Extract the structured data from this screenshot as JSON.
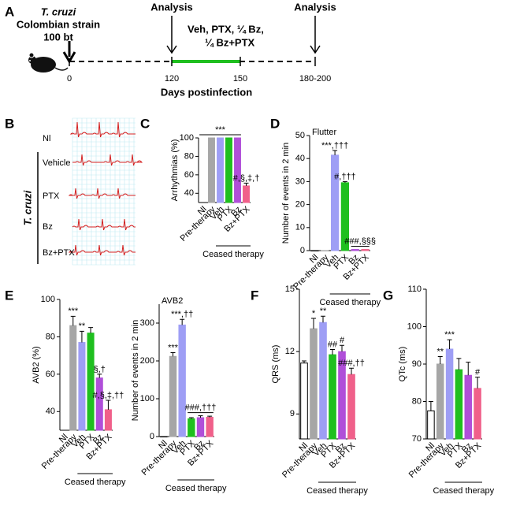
{
  "timeline": {
    "panel": "A",
    "infection": [
      "T. cruzi",
      "Colombian strain",
      "100 bt"
    ],
    "analysis": [
      "Analysis",
      "Analysis"
    ],
    "treatment": [
      "Veh, PTX, ¼ Bz,",
      "¼ Bz+PTX"
    ],
    "ticks": [
      "0",
      "120",
      "150",
      "180-200"
    ],
    "xlabel": "Days postinfection"
  },
  "ecg": {
    "panel": "B",
    "group": "T. cruzi",
    "rows": [
      "Nl",
      "Vehicle",
      "PTX",
      "Bz",
      "Bz+PTX"
    ]
  },
  "chart_data": [
    {
      "type": "bar",
      "panel": "C",
      "ylabel": "Arrhythmias (%)",
      "categories": [
        "Nl",
        "Pre-therapy",
        "Veh",
        "PTX",
        "Bz",
        "Bz+PTX"
      ],
      "values": [
        null,
        100,
        100,
        100,
        100,
        48
      ],
      "errors": [
        null,
        null,
        null,
        null,
        null,
        3
      ],
      "colors": [
        "#ffffff",
        "#a6a6a6",
        "#9e9ef5",
        "#1fbf1f",
        "#b04fd9",
        "#f0608a"
      ],
      "ylim": [
        30,
        100
      ],
      "yticks": [
        40,
        60,
        80,
        100
      ],
      "annotations": [
        null,
        null,
        null,
        null,
        null,
        "#,§,‡,†"
      ],
      "bracket": {
        "label": "***",
        "categories": [
          "Nl",
          "Bz"
        ]
      },
      "group": {
        "label": "Ceased therapy",
        "categories": [
          "Veh",
          "Bz+PTX"
        ]
      }
    },
    {
      "type": "bar",
      "panel": "D",
      "title": "Flutter",
      "ylabel": "Number of events in 2 min",
      "categories": [
        "Nl",
        "Pre-therapy",
        "Veh",
        "PTX",
        "Bz",
        "Bz+PTX"
      ],
      "values": [
        0,
        0,
        41.5,
        29.5,
        0.5,
        0.5
      ],
      "errors": [
        null,
        null,
        2,
        0.5,
        null,
        null
      ],
      "colors": [
        "#ffffff",
        "#a6a6a6",
        "#9e9ef5",
        "#1fbf1f",
        "#b04fd9",
        "#f0608a"
      ],
      "ylim": [
        0,
        50
      ],
      "yticks": [
        0,
        10,
        20,
        30,
        40,
        50
      ],
      "annotations": [
        null,
        null,
        "***,†††",
        "#,†††",
        null,
        null
      ],
      "bracket": {
        "label": "###,§§§",
        "categories": [
          "Bz",
          "Bz+PTX"
        ]
      },
      "group": {
        "label": "Ceased therapy",
        "categories": [
          "Veh",
          "Bz+PTX"
        ]
      }
    },
    {
      "type": "bar",
      "panel": "E",
      "ylabel": "AVB2 (%)",
      "categories": [
        "Nl",
        "Pre-therapy",
        "Veh",
        "PTX",
        "Bz",
        "Bz+PTX"
      ],
      "values": [
        null,
        86,
        77,
        82,
        58,
        41
      ],
      "errors": [
        null,
        5,
        6,
        3,
        2,
        5
      ],
      "colors": [
        "#ffffff",
        "#a6a6a6",
        "#9e9ef5",
        "#1fbf1f",
        "#b04fd9",
        "#f0608a"
      ],
      "ylim": [
        30,
        100
      ],
      "yticks": [
        40,
        60,
        80,
        100
      ],
      "annotations": [
        null,
        "***",
        "**",
        null,
        "§,†",
        "#,§,‡,††"
      ],
      "group": {
        "label": "Ceased therapy",
        "categories": [
          "Veh",
          "Bz+PTX"
        ]
      }
    },
    {
      "type": "bar",
      "title": "AVB2",
      "ylabel": "Number of events in 2 min",
      "categories": [
        "Nl",
        "Pre-therapy",
        "Veh",
        "PTX",
        "Bz",
        "Bz+PTX"
      ],
      "values": [
        0,
        212,
        295,
        47,
        50,
        51
      ],
      "errors": [
        null,
        10,
        15,
        3,
        5,
        3
      ],
      "colors": [
        "#ffffff",
        "#a6a6a6",
        "#9e9ef5",
        "#1fbf1f",
        "#b04fd9",
        "#f0608a"
      ],
      "ylim": [
        0,
        350
      ],
      "yticks": [
        0,
        100,
        200,
        300
      ],
      "annotations": [
        null,
        "***",
        "***,††",
        null,
        null,
        null
      ],
      "bracket": {
        "label": "###,†††",
        "categories": [
          "PTX",
          "Bz+PTX"
        ]
      },
      "group": {
        "label": "Ceased therapy",
        "categories": [
          "Veh",
          "Bz+PTX"
        ]
      }
    },
    {
      "type": "bar",
      "panel": "F",
      "ylabel": "QRS (ms)",
      "categories": [
        "Nl",
        "Pre-therapy",
        "Veh",
        "PTX",
        "Bz",
        "Bz+PTX"
      ],
      "values": [
        11.45,
        13.1,
        13.4,
        11.85,
        12.0,
        10.9
      ],
      "errors": [
        0.1,
        0.5,
        0.3,
        0.25,
        0.3,
        0.3
      ],
      "colors": [
        "#ffffff",
        "#a6a6a6",
        "#9e9ef5",
        "#1fbf1f",
        "#b04fd9",
        "#f0608a"
      ],
      "ylim": [
        7.8,
        15
      ],
      "yticks": [
        9,
        12,
        15
      ],
      "annotations": [
        null,
        "*",
        "**",
        "##",
        "#",
        "###,††"
      ],
      "group": {
        "label": "Ceased therapy",
        "categories": [
          "Veh",
          "Bz+PTX"
        ]
      }
    },
    {
      "type": "bar",
      "panel": "G",
      "ylabel": "QTc (ms)",
      "categories": [
        "Nl",
        "Pre-therapy",
        "Veh",
        "PTX",
        "Bz",
        "Bz+PTX"
      ],
      "values": [
        77.5,
        90,
        94,
        88.5,
        87,
        83.5
      ],
      "errors": [
        2.5,
        2,
        2.5,
        3,
        3.5,
        3
      ],
      "colors": [
        "#ffffff",
        "#a6a6a6",
        "#9e9ef5",
        "#1fbf1f",
        "#b04fd9",
        "#f0608a"
      ],
      "ylim": [
        70,
        110
      ],
      "yticks": [
        70,
        80,
        90,
        100,
        110
      ],
      "annotations": [
        null,
        "**",
        "***",
        null,
        null,
        "#"
      ],
      "group": {
        "label": "Ceased therapy",
        "categories": [
          "Veh",
          "Bz+PTX"
        ]
      }
    }
  ]
}
